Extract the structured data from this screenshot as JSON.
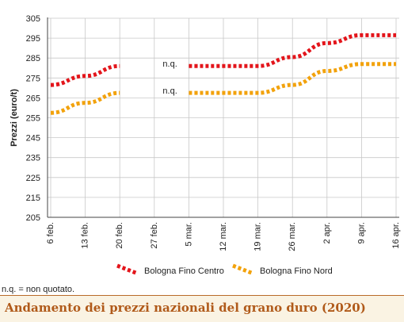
{
  "chart_data": {
    "type": "line",
    "ylabel": "Prezzi (euro/t)",
    "xlabel": "",
    "ylim": [
      205,
      305
    ],
    "yticks": [
      205,
      215,
      225,
      235,
      245,
      255,
      265,
      275,
      285,
      295,
      305
    ],
    "categories": [
      "6 feb.",
      "13 feb.",
      "20 feb.",
      "27 feb.",
      "5 mar.",
      "12 mar.",
      "19 mar.",
      "26 mar.",
      "2 apr.",
      "9 apr.",
      "16 apr."
    ],
    "series": [
      {
        "name": "Bologna Fino Centro",
        "color": "#e3151b",
        "values": [
          271.5,
          276,
          281,
          null,
          281,
          281,
          281,
          285.5,
          292.5,
          296.5,
          296.5
        ]
      },
      {
        "name": "Bologna Fino Nord",
        "color": "#f2a20c",
        "values": [
          257.5,
          262.5,
          267.5,
          null,
          267.5,
          267.5,
          267.5,
          271.5,
          278.5,
          282,
          282
        ]
      }
    ],
    "annotations": [
      {
        "text": "n.q.",
        "series": 0
      },
      {
        "text": "n.q.",
        "series": 1
      }
    ],
    "grid": true,
    "legend": "bottom"
  },
  "footnote": "n.q. = non quotato.",
  "title": "Andamento dei prezzi nazionali del grano duro (2020)"
}
